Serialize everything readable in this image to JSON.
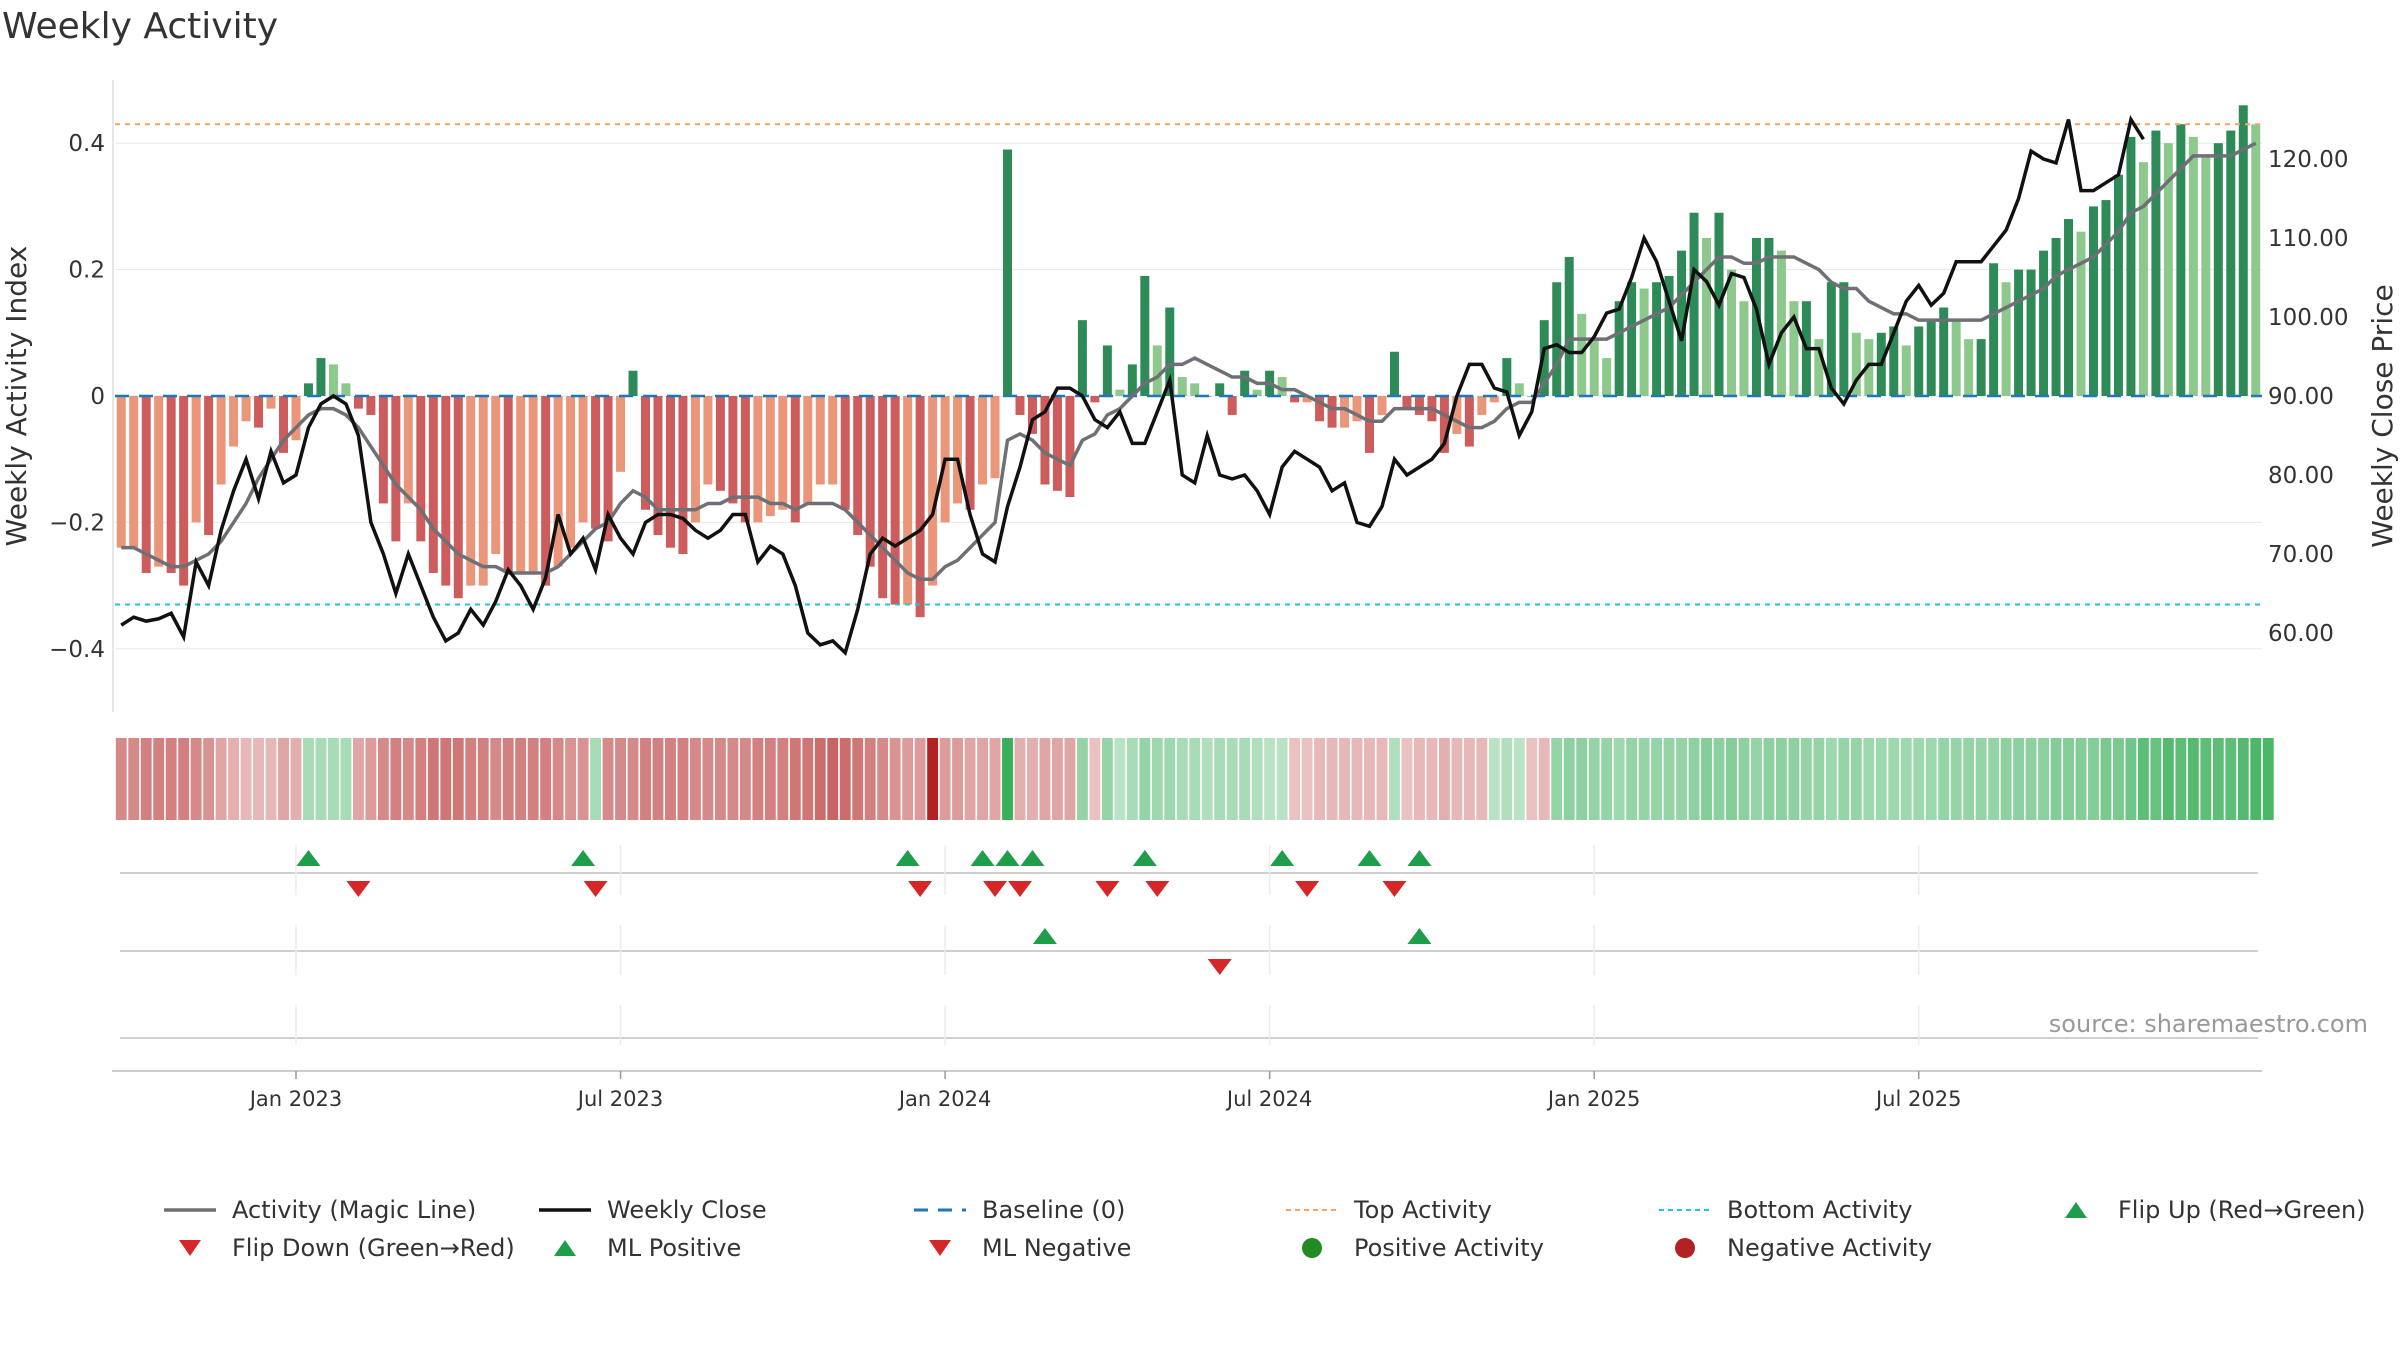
{
  "title": "Weekly Activity",
  "source": "source: sharemaestro.com",
  "colors": {
    "pos_dark": "#2e8b57",
    "pos_light": "#8dc88d",
    "neg_dark": "#cd5c5c",
    "neg_light": "#e9967a",
    "magic": "#6e7075",
    "close": "#111111",
    "baseline": "#1f77b4",
    "top": "#f4a460",
    "bottom": "#22c5d9",
    "flip_up": "#1e9e4a",
    "flip_down": "#d62728",
    "pos_dot": "#228b22",
    "neg_dot": "#b22222"
  },
  "chart_data": {
    "type": "bar+line",
    "title": "Weekly Activity",
    "ylabel_left": "Weekly Activity Index",
    "ylabel_right": "Weekly Close Price",
    "ylim_left": [
      -0.5,
      0.5
    ],
    "ylim_right": [
      50,
      130
    ],
    "yticks_left": [
      {
        "v": -0.4,
        "label": "−0.4"
      },
      {
        "v": -0.2,
        "label": "−0.2"
      },
      {
        "v": 0,
        "label": "0"
      },
      {
        "v": 0.2,
        "label": "0.2"
      },
      {
        "v": 0.4,
        "label": "0.4"
      }
    ],
    "yticks_right": [
      {
        "v": 60,
        "label": "60.00"
      },
      {
        "v": 70,
        "label": "70.00"
      },
      {
        "v": 80,
        "label": "80.00"
      },
      {
        "v": 90,
        "label": "90.00"
      },
      {
        "v": 100,
        "label": "100.00"
      },
      {
        "v": 110,
        "label": "110.00"
      },
      {
        "v": 120,
        "label": "120.00"
      }
    ],
    "x_ticks": [
      {
        "week": 14,
        "label": "Jan 2023"
      },
      {
        "week": 40,
        "label": "Jul 2023"
      },
      {
        "week": 66,
        "label": "Jan 2024"
      },
      {
        "week": 92,
        "label": "Jul 2024"
      },
      {
        "week": 118,
        "label": "Jan 2025"
      },
      {
        "week": 144,
        "label": "Jul 2025"
      }
    ],
    "top_activity": 0.43,
    "bottom_activity": -0.33,
    "baseline": 0,
    "activity": [
      -0.24,
      -0.24,
      -0.28,
      -0.27,
      -0.28,
      -0.3,
      -0.2,
      -0.22,
      -0.14,
      -0.08,
      -0.04,
      -0.05,
      -0.02,
      -0.09,
      -0.07,
      0.02,
      0.06,
      0.05,
      0.02,
      -0.02,
      -0.03,
      -0.17,
      -0.23,
      -0.17,
      -0.23,
      -0.28,
      -0.3,
      -0.32,
      -0.3,
      -0.3,
      -0.25,
      -0.28,
      -0.28,
      -0.28,
      -0.3,
      -0.27,
      -0.24,
      -0.2,
      -0.21,
      -0.23,
      -0.12,
      0.04,
      -0.18,
      -0.22,
      -0.24,
      -0.25,
      -0.2,
      -0.14,
      -0.15,
      -0.17,
      -0.2,
      -0.2,
      -0.19,
      -0.18,
      -0.2,
      -0.17,
      -0.14,
      -0.14,
      -0.18,
      -0.22,
      -0.27,
      -0.32,
      -0.33,
      -0.33,
      -0.35,
      -0.3,
      -0.2,
      -0.17,
      -0.18,
      -0.14,
      -0.13,
      0.39,
      -0.03,
      -0.06,
      -0.14,
      -0.15,
      -0.16,
      0.12,
      -0.01,
      0.08,
      0.01,
      0.05,
      0.19,
      0.08,
      0.14,
      0.03,
      0.02,
      0.0,
      0.02,
      -0.03,
      0.04,
      0.01,
      0.04,
      0.03,
      -0.01,
      -0.01,
      -0.04,
      -0.05,
      -0.05,
      -0.04,
      -0.09,
      -0.03,
      0.07,
      -0.02,
      -0.03,
      -0.04,
      -0.09,
      -0.06,
      -0.08,
      -0.03,
      -0.01,
      0.06,
      0.02,
      0.0,
      0.12,
      0.18,
      0.22,
      0.13,
      0.09,
      0.06,
      0.15,
      0.18,
      0.17,
      0.18,
      0.19,
      0.23,
      0.29,
      0.25,
      0.29,
      0.2,
      0.15,
      0.25,
      0.25,
      0.23,
      0.15,
      0.15,
      0.09,
      0.18,
      0.18,
      0.1,
      0.09,
      0.1,
      0.11,
      0.08,
      0.11,
      0.12,
      0.14,
      0.12,
      0.09,
      0.09,
      0.21,
      0.18,
      0.2,
      0.2,
      0.23,
      0.25,
      0.28,
      0.26,
      0.3,
      0.31,
      0.35,
      0.41,
      0.37,
      0.42,
      0.4,
      0.43,
      0.41,
      0.38,
      0.4,
      0.42,
      0.46,
      0.43
    ],
    "magic_line": [
      -0.24,
      -0.24,
      -0.25,
      -0.26,
      -0.27,
      -0.27,
      -0.26,
      -0.25,
      -0.23,
      -0.2,
      -0.17,
      -0.13,
      -0.1,
      -0.07,
      -0.05,
      -0.03,
      -0.02,
      -0.02,
      -0.03,
      -0.05,
      -0.08,
      -0.11,
      -0.14,
      -0.16,
      -0.18,
      -0.21,
      -0.23,
      -0.25,
      -0.26,
      -0.27,
      -0.27,
      -0.28,
      -0.28,
      -0.28,
      -0.28,
      -0.27,
      -0.25,
      -0.23,
      -0.21,
      -0.2,
      -0.17,
      -0.15,
      -0.16,
      -0.18,
      -0.18,
      -0.18,
      -0.18,
      -0.17,
      -0.17,
      -0.16,
      -0.16,
      -0.16,
      -0.17,
      -0.17,
      -0.18,
      -0.17,
      -0.17,
      -0.17,
      -0.18,
      -0.2,
      -0.22,
      -0.24,
      -0.26,
      -0.28,
      -0.29,
      -0.29,
      -0.27,
      -0.26,
      -0.24,
      -0.22,
      -0.2,
      -0.07,
      -0.06,
      -0.07,
      -0.09,
      -0.1,
      -0.11,
      -0.07,
      -0.06,
      -0.03,
      -0.02,
      0.0,
      0.02,
      0.03,
      0.05,
      0.05,
      0.06,
      0.05,
      0.04,
      0.03,
      0.03,
      0.02,
      0.02,
      0.01,
      0.01,
      0.0,
      -0.01,
      -0.02,
      -0.02,
      -0.03,
      -0.04,
      -0.04,
      -0.02,
      -0.02,
      -0.02,
      -0.02,
      -0.03,
      -0.04,
      -0.05,
      -0.05,
      -0.04,
      -0.02,
      -0.01,
      -0.01,
      0.02,
      0.05,
      0.09,
      0.09,
      0.09,
      0.09,
      0.1,
      0.11,
      0.12,
      0.13,
      0.14,
      0.16,
      0.18,
      0.2,
      0.22,
      0.22,
      0.21,
      0.21,
      0.22,
      0.22,
      0.22,
      0.21,
      0.2,
      0.18,
      0.17,
      0.17,
      0.15,
      0.14,
      0.13,
      0.13,
      0.12,
      0.12,
      0.12,
      0.12,
      0.12,
      0.12,
      0.13,
      0.14,
      0.15,
      0.16,
      0.17,
      0.19,
      0.2,
      0.21,
      0.22,
      0.24,
      0.26,
      0.29,
      0.3,
      0.32,
      0.34,
      0.36,
      0.38,
      0.38,
      0.38,
      0.38,
      0.39,
      0.4
    ],
    "weekly_close": [
      61,
      62,
      61.5,
      61.8,
      62.5,
      59.5,
      69,
      66,
      73,
      78,
      82,
      77,
      83,
      79,
      80,
      86,
      89,
      90,
      89,
      85,
      74,
      70,
      65,
      70,
      66,
      62,
      59,
      60,
      63,
      61,
      64,
      68,
      66,
      63,
      67,
      75,
      70,
      72,
      68,
      75,
      72,
      70,
      74,
      75,
      75,
      74.5,
      73,
      72,
      73,
      75,
      75,
      69,
      71,
      70,
      66,
      60,
      58.5,
      59,
      57.5,
      63,
      70,
      72,
      71,
      72,
      73,
      75,
      82,
      82,
      75,
      70,
      69,
      76,
      81,
      87,
      88,
      91,
      91,
      90,
      87,
      86,
      88,
      84,
      84,
      88,
      92,
      80,
      79,
      85,
      80,
      79.5,
      80,
      78,
      75,
      81,
      83,
      82,
      81,
      78,
      79,
      74,
      73.5,
      76,
      82,
      80,
      81,
      82,
      84,
      90,
      94,
      94,
      91,
      90.5,
      85,
      88,
      96,
      96.5,
      95.5,
      95.5,
      97.5,
      100.5,
      101,
      105,
      110,
      107,
      102,
      97,
      106,
      104.5,
      101.5,
      105.5,
      105,
      101,
      94,
      98,
      100,
      96,
      96,
      91,
      89,
      92,
      94,
      94,
      98,
      102,
      104,
      101.5,
      103,
      107,
      107,
      107,
      109,
      111,
      115,
      121,
      120,
      119.5,
      125,
      116,
      116,
      117,
      118,
      125,
      122.5
    ],
    "heat_strip": [
      -0.45,
      -0.45,
      -0.5,
      -0.5,
      -0.5,
      -0.5,
      -0.45,
      -0.4,
      -0.3,
      -0.25,
      -0.2,
      -0.2,
      -0.2,
      -0.3,
      -0.25,
      0.3,
      0.3,
      0.3,
      0.3,
      -0.3,
      -0.35,
      -0.45,
      -0.5,
      -0.45,
      -0.5,
      -0.55,
      -0.55,
      -0.55,
      -0.5,
      -0.5,
      -0.45,
      -0.5,
      -0.5,
      -0.5,
      -0.5,
      -0.45,
      -0.4,
      -0.4,
      0.3,
      -0.45,
      -0.45,
      -0.45,
      -0.5,
      -0.5,
      -0.5,
      -0.5,
      -0.45,
      -0.45,
      -0.45,
      -0.45,
      -0.45,
      -0.5,
      -0.5,
      -0.5,
      -0.55,
      -0.55,
      -0.6,
      -0.65,
      -0.6,
      -0.55,
      -0.5,
      -0.45,
      -0.4,
      -0.35,
      -0.35,
      -1.0,
      -0.35,
      -0.35,
      -0.3,
      -0.3,
      -0.3,
      0.9,
      -0.25,
      -0.25,
      -0.3,
      -0.3,
      -0.3,
      0.4,
      -0.15,
      0.4,
      0.2,
      0.3,
      0.4,
      0.35,
      0.35,
      0.3,
      0.3,
      0.25,
      0.3,
      0.3,
      0.3,
      0.25,
      0.2,
      0.2,
      -0.15,
      -0.15,
      -0.2,
      -0.2,
      -0.2,
      -0.2,
      -0.2,
      -0.2,
      0.25,
      -0.15,
      -0.2,
      -0.2,
      -0.25,
      -0.2,
      -0.2,
      -0.2,
      0.2,
      0.25,
      0.2,
      -0.15,
      -0.2,
      0.4,
      0.45,
      0.45,
      0.4,
      0.4,
      0.35,
      0.4,
      0.4,
      0.4,
      0.4,
      0.4,
      0.45,
      0.5,
      0.45,
      0.5,
      0.45,
      0.4,
      0.45,
      0.45,
      0.45,
      0.4,
      0.4,
      0.35,
      0.4,
      0.4,
      0.35,
      0.35,
      0.35,
      0.35,
      0.35,
      0.35,
      0.4,
      0.4,
      0.4,
      0.4,
      0.4,
      0.45,
      0.45,
      0.45,
      0.45,
      0.5,
      0.5,
      0.5,
      0.5,
      0.55,
      0.55,
      0.6,
      0.7,
      0.65,
      0.75,
      0.7,
      0.75,
      0.7,
      0.7,
      0.7,
      0.75,
      0.8,
      0.8
    ],
    "flip_up_weeks": [
      15,
      37,
      63,
      69,
      71,
      73,
      82,
      93,
      100,
      104
    ],
    "flip_down_weeks": [
      19,
      38,
      64,
      70,
      72,
      79,
      83,
      95,
      102
    ],
    "ml_positive_weeks": [
      74,
      104
    ],
    "ml_negative_weeks": [
      88
    ],
    "legend": [
      {
        "key": "magic",
        "label": "Activity (Magic Line)",
        "shape": "line"
      },
      {
        "key": "close",
        "label": "Weekly Close",
        "shape": "line"
      },
      {
        "key": "baseline",
        "label": "Baseline (0)",
        "shape": "dash"
      },
      {
        "key": "top",
        "label": "Top Activity",
        "shape": "dot-line"
      },
      {
        "key": "bottom",
        "label": "Bottom Activity",
        "shape": "dot-line"
      },
      {
        "key": "flip_up",
        "label": "Flip Up (Red→Green)",
        "shape": "tri-up"
      },
      {
        "key": "flip_down",
        "label": "Flip Down (Green→Red)",
        "shape": "tri-down"
      },
      {
        "key": "flip_up",
        "label": "ML Positive",
        "shape": "tri-up"
      },
      {
        "key": "flip_down",
        "label": "ML Negative",
        "shape": "tri-down"
      },
      {
        "key": "pos_dot",
        "label": "Positive Activity",
        "shape": "circle"
      },
      {
        "key": "neg_dot",
        "label": "Negative Activity",
        "shape": "circle"
      }
    ]
  }
}
